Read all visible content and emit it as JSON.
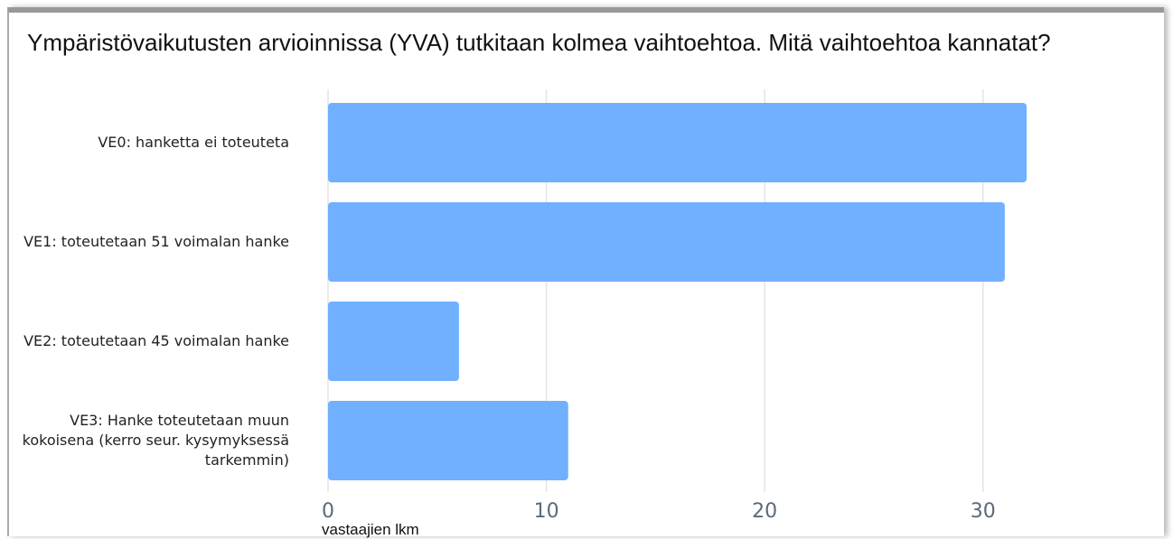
{
  "chart_data": {
    "type": "bar",
    "orientation": "horizontal",
    "title": "Ympäristövaikutusten arvioinnissa (YVA) tutkitaan kolmea vaihtoehtoa. Mitä vaihtoehtoa kannatat?",
    "categories": [
      "VE0: hanketta ei toteuteta",
      "VE1: toteutetaan 51 voimalan hanke",
      "VE2: toteutetaan 45 voimalan hanke",
      "VE3: Hanke toteutetaan muun kokoisena (kerro seur. kysymyksessä tarkemmin)"
    ],
    "values": [
      32,
      31,
      6,
      11
    ],
    "color": "#70b0ff",
    "xlabel": "vastaajien lkm",
    "xlim": [
      0,
      38
    ],
    "xticks": [
      0,
      10,
      20,
      30
    ],
    "grid": true
  }
}
